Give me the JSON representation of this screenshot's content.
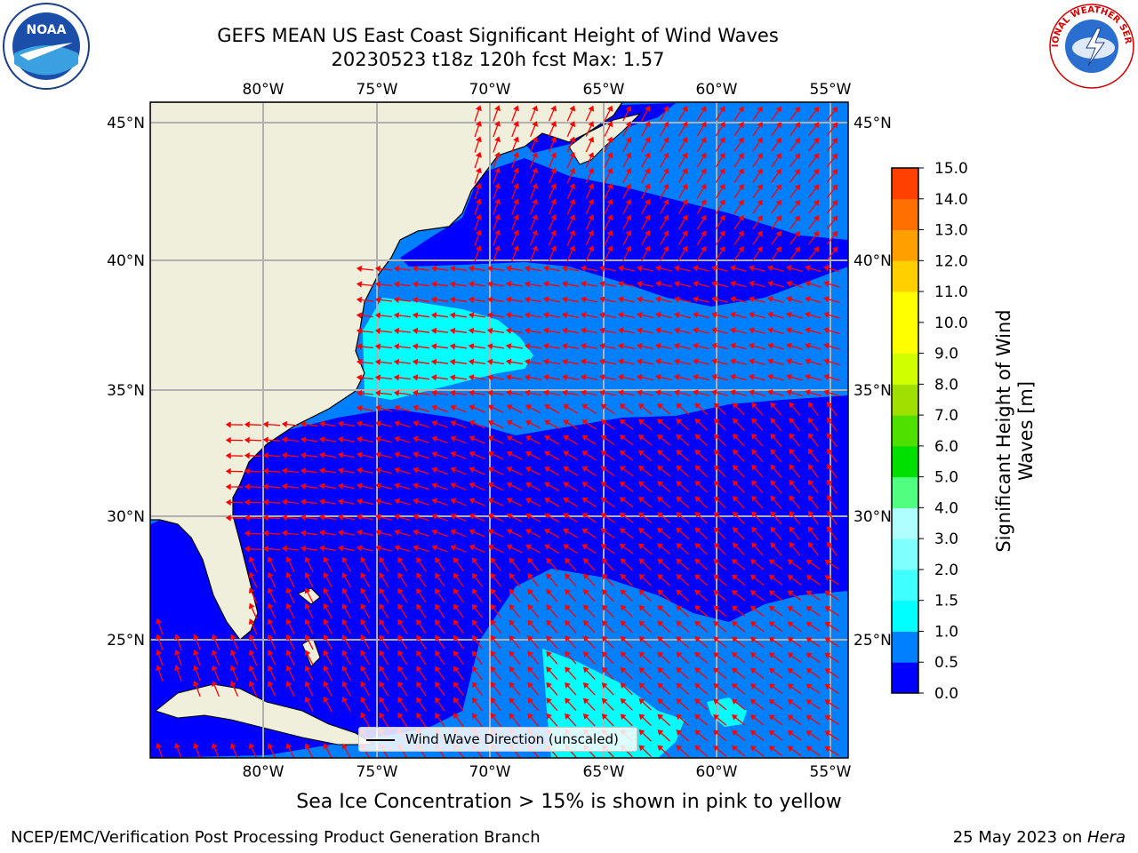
{
  "title": {
    "line1": "GEFS MEAN US East Coast Significant Height of Wind Waves",
    "line2": "20230523 t18z 120h fcst   Max: 1.57"
  },
  "logos": {
    "left": "noaa-logo",
    "right": "nws-logo",
    "left_text": "NOAA",
    "right_text": "NATIONAL WEATHER SERVICE"
  },
  "map": {
    "lon_ticks": [
      "80°W",
      "75°W",
      "70°W",
      "65°W",
      "60°W",
      "55°W"
    ],
    "lat_ticks_left": [
      "45°N",
      "40°N",
      "35°N",
      "30°N",
      "25°N"
    ],
    "lat_ticks_right": [
      "45°N",
      "40°N",
      "35°N",
      "30°N",
      "25°N"
    ],
    "lon_range": [
      -85,
      -54.2
    ],
    "lat_range": [
      20.4,
      46
    ],
    "land_color": "#efefdc",
    "arrow_color": "#ff0000",
    "grid": true
  },
  "legend": {
    "label": "Wind Wave Direction (unscaled)"
  },
  "colorbar": {
    "title_line1": "Significant Height of Wind",
    "title_line2": "Waves [m]",
    "ticks": [
      "0.0",
      "0.5",
      "1.0",
      "1.5",
      "2.0",
      "3.0",
      "4.0",
      "5.0",
      "6.0",
      "7.0",
      "8.0",
      "9.0",
      "10.0",
      "11.0",
      "12.0",
      "13.0",
      "14.0",
      "15.0"
    ],
    "colors": [
      "#0000ff",
      "#0080ff",
      "#00ffff",
      "#40ffff",
      "#80ffff",
      "#b0ffff",
      "#50ff80",
      "#00e000",
      "#50e000",
      "#a0e000",
      "#d0ff00",
      "#ffff00",
      "#ffff00",
      "#ffd000",
      "#ffa000",
      "#ff7000",
      "#ff4000",
      "#ff0000"
    ]
  },
  "note": "Sea Ice Concentration > 15% is shown in pink to yellow",
  "footer": {
    "left": "NCEP/EMC/Verification Post Processing Product Generation Branch",
    "right_prefix": "25 May 2023 on ",
    "right_host": "Hera"
  }
}
